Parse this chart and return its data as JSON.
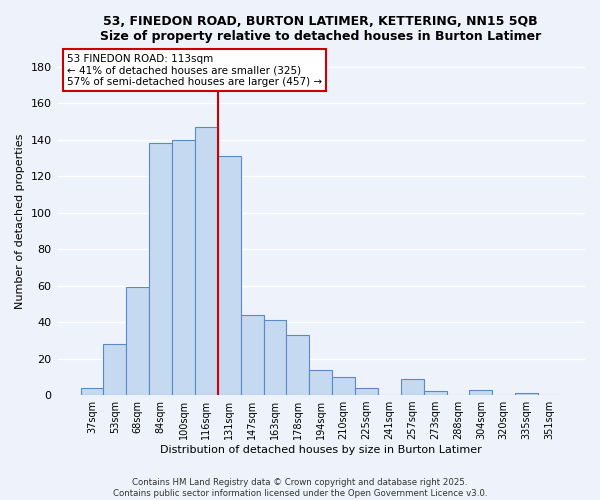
{
  "title1": "53, FINEDON ROAD, BURTON LATIMER, KETTERING, NN15 5QB",
  "title2": "Size of property relative to detached houses in Burton Latimer",
  "xlabel": "Distribution of detached houses by size in Burton Latimer",
  "ylabel": "Number of detached properties",
  "categories": [
    "37sqm",
    "53sqm",
    "68sqm",
    "84sqm",
    "100sqm",
    "116sqm",
    "131sqm",
    "147sqm",
    "163sqm",
    "178sqm",
    "194sqm",
    "210sqm",
    "225sqm",
    "241sqm",
    "257sqm",
    "273sqm",
    "288sqm",
    "304sqm",
    "320sqm",
    "335sqm",
    "351sqm"
  ],
  "values": [
    4,
    28,
    59,
    138,
    140,
    147,
    131,
    44,
    41,
    33,
    14,
    10,
    4,
    0,
    9,
    2,
    0,
    3,
    0,
    1,
    0
  ],
  "bar_color": "#c5d9f1",
  "bar_edge_color": "#5a8ac6",
  "vline_color": "#cc0000",
  "annotation_line1": "53 FINEDON ROAD: 113sqm",
  "annotation_line2": "← 41% of detached houses are smaller (325)",
  "annotation_line3": "57% of semi-detached houses are larger (457) →",
  "annotation_box_color": "white",
  "annotation_box_edge_color": "#cc0000",
  "ylim": [
    0,
    190
  ],
  "yticks": [
    0,
    20,
    40,
    60,
    80,
    100,
    120,
    140,
    160,
    180
  ],
  "footer1": "Contains HM Land Registry data © Crown copyright and database right 2025.",
  "footer2": "Contains public sector information licensed under the Open Government Licence v3.0.",
  "bg_color": "#eef3fb",
  "grid_color": "#ffffff",
  "title_fontsize": 9,
  "ylabel_fontsize": 8,
  "xlabel_fontsize": 8
}
